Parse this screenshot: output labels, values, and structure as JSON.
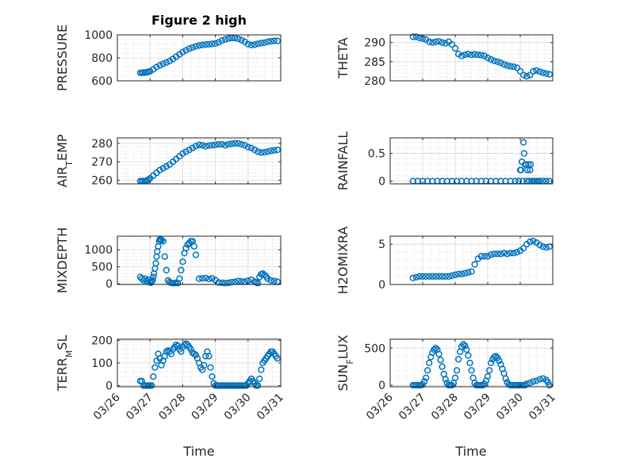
{
  "figure_title": "Figure 2 high",
  "colors": {
    "marker": "#0072BD",
    "axis": "#262626",
    "grid": "#cfcfcf"
  },
  "chart_data": [
    {
      "type": "scatter",
      "ylabel": "PRESSURE",
      "ylim": [
        600,
        1000
      ],
      "yticks": [
        600,
        800,
        1000
      ],
      "ytick_labels": [
        "600",
        "800",
        "1000"
      ],
      "x": [
        0.7,
        0.75,
        0.8,
        0.85,
        0.9,
        0.95,
        1.0,
        1.1,
        1.2,
        1.3,
        1.4,
        1.5,
        1.6,
        1.7,
        1.8,
        1.9,
        2.0,
        2.1,
        2.2,
        2.3,
        2.4,
        2.5,
        2.6,
        2.7,
        2.8,
        2.9,
        3.0,
        3.1,
        3.2,
        3.3,
        3.4,
        3.5,
        3.6,
        3.7,
        3.8,
        3.9,
        4.0,
        4.1,
        4.2,
        4.3,
        4.4,
        4.5,
        4.6,
        4.7,
        4.8,
        4.9
      ],
      "y": [
        670,
        670,
        672,
        672,
        675,
        678,
        683,
        700,
        720,
        735,
        748,
        760,
        772,
        790,
        810,
        830,
        850,
        865,
        880,
        890,
        900,
        908,
        913,
        916,
        918,
        922,
        925,
        935,
        950,
        960,
        968,
        972,
        972,
        965,
        955,
        940,
        920,
        912,
        915,
        922,
        928,
        932,
        940,
        945,
        948,
        948
      ]
    },
    {
      "type": "scatter",
      "ylabel": "THETA",
      "ylim": [
        280,
        292
      ],
      "yticks": [
        280,
        285,
        290
      ],
      "ytick_labels": [
        "280",
        "285",
        "290"
      ],
      "x": [
        0.7,
        0.8,
        0.9,
        1.0,
        1.1,
        1.2,
        1.3,
        1.4,
        1.5,
        1.6,
        1.7,
        1.8,
        1.9,
        2.0,
        2.1,
        2.2,
        2.3,
        2.4,
        2.5,
        2.6,
        2.7,
        2.8,
        2.9,
        3.0,
        3.1,
        3.2,
        3.3,
        3.4,
        3.5,
        3.6,
        3.7,
        3.8,
        3.9,
        4.0,
        4.1,
        4.2,
        4.3,
        4.4,
        4.5,
        4.6,
        4.7,
        4.8,
        4.9
      ],
      "y": [
        291.5,
        291.5,
        291.2,
        291.0,
        290.8,
        290.2,
        290.0,
        290.2,
        290.3,
        290.0,
        289.8,
        290.2,
        289.5,
        288.5,
        287.0,
        286.5,
        286.8,
        287.0,
        286.8,
        286.9,
        286.8,
        286.7,
        286.5,
        286.0,
        285.6,
        285.2,
        285.0,
        284.7,
        284.3,
        284.0,
        283.8,
        283.7,
        283.4,
        282.5,
        281.5,
        281.2,
        281.5,
        282.5,
        282.7,
        282.4,
        282.1,
        281.9,
        281.7
      ]
    },
    {
      "type": "scatter",
      "ylabel": "AIR_TEMP",
      "ylim": [
        258,
        283
      ],
      "yticks": [
        260,
        270,
        280
      ],
      "ytick_labels": [
        "260",
        "270",
        "280"
      ],
      "x": [
        0.7,
        0.75,
        0.8,
        0.85,
        0.9,
        0.95,
        1.0,
        1.1,
        1.2,
        1.3,
        1.4,
        1.5,
        1.6,
        1.7,
        1.8,
        1.9,
        2.0,
        2.1,
        2.2,
        2.3,
        2.4,
        2.5,
        2.6,
        2.7,
        2.8,
        2.9,
        3.0,
        3.1,
        3.2,
        3.3,
        3.4,
        3.5,
        3.6,
        3.7,
        3.8,
        3.9,
        4.0,
        4.1,
        4.2,
        4.3,
        4.4,
        4.5,
        4.6,
        4.7,
        4.8,
        4.9
      ],
      "y": [
        259.5,
        259.5,
        259.5,
        259.5,
        259.8,
        260.2,
        261.0,
        262.5,
        264.0,
        265.5,
        266.5,
        267.5,
        268.5,
        270.0,
        271.5,
        273.0,
        274.5,
        275.5,
        276.5,
        277.5,
        278.5,
        279.2,
        279.0,
        278.5,
        278.8,
        279.0,
        279.2,
        279.5,
        279.5,
        279.0,
        279.5,
        279.8,
        280.0,
        280.0,
        279.5,
        279.0,
        278.0,
        277.5,
        276.5,
        275.5,
        275.0,
        275.2,
        275.5,
        276.0,
        276.2,
        276.5
      ]
    },
    {
      "type": "scatter",
      "ylabel": "RAINFALL",
      "ylim": [
        -0.05,
        0.78
      ],
      "yticks": [
        0,
        0.5
      ],
      "ytick_labels": [
        "0",
        "0.5"
      ],
      "x": [
        0.7,
        0.85,
        1.0,
        1.15,
        1.3,
        1.45,
        1.6,
        1.75,
        1.9,
        2.05,
        2.2,
        2.35,
        2.5,
        2.65,
        2.8,
        2.95,
        3.1,
        3.25,
        3.4,
        3.55,
        3.7,
        3.85,
        3.95,
        4.0,
        4.02,
        4.05,
        4.08,
        4.1,
        4.12,
        4.15,
        4.18,
        4.2,
        4.22,
        4.25,
        4.28,
        4.3,
        4.32,
        4.35,
        4.4,
        4.45,
        4.5,
        4.55,
        4.6,
        4.7,
        4.8,
        4.9
      ],
      "y": [
        0,
        0,
        0,
        0,
        0,
        0,
        0,
        0,
        0,
        0,
        0,
        0,
        0,
        0,
        0,
        0,
        0,
        0,
        0,
        0,
        0,
        0,
        0,
        0.2,
        0.2,
        0.35,
        0,
        0.7,
        0.5,
        0.3,
        0.3,
        0,
        0.2,
        0.3,
        0,
        0.2,
        0.3,
        0,
        0,
        0,
        0,
        0,
        0,
        0,
        0,
        0
      ]
    },
    {
      "type": "scatter",
      "ylabel": "MIXDEPTH",
      "ylim": [
        -20,
        1400
      ],
      "yticks": [
        0,
        500,
        1000
      ],
      "ytick_labels": [
        "0",
        "500",
        "1000"
      ],
      "x": [
        0.7,
        0.75,
        0.8,
        0.85,
        0.9,
        0.95,
        1.0,
        1.02,
        1.05,
        1.08,
        1.1,
        1.12,
        1.15,
        1.18,
        1.2,
        1.22,
        1.25,
        1.28,
        1.3,
        1.33,
        1.35,
        1.4,
        1.45,
        1.5,
        1.55,
        1.6,
        1.65,
        1.7,
        1.75,
        1.8,
        1.85,
        1.9,
        1.95,
        2.0,
        2.05,
        2.1,
        2.15,
        2.2,
        2.25,
        2.3,
        2.35,
        2.4,
        2.5,
        2.6,
        2.7,
        2.8,
        2.9,
        3.0,
        3.1,
        3.2,
        3.3,
        3.4,
        3.5,
        3.6,
        3.7,
        3.8,
        3.9,
        4.0,
        4.1,
        4.2,
        4.25,
        4.3,
        4.35,
        4.4,
        4.45,
        4.5,
        4.55,
        4.6,
        4.7,
        4.8,
        4.9
      ],
      "y": [
        200,
        150,
        100,
        150,
        80,
        120,
        50,
        30,
        80,
        100,
        200,
        300,
        450,
        600,
        800,
        950,
        1100,
        1250,
        1300,
        1300,
        1280,
        1250,
        800,
        400,
        100,
        50,
        30,
        20,
        20,
        30,
        20,
        150,
        400,
        650,
        900,
        1050,
        1150,
        1200,
        1250,
        1250,
        1100,
        850,
        150,
        160,
        170,
        140,
        160,
        110,
        40,
        30,
        20,
        30,
        50,
        60,
        80,
        70,
        60,
        90,
        120,
        60,
        40,
        20,
        200,
        280,
        300,
        260,
        220,
        150,
        100,
        80,
        60
      ]
    },
    {
      "type": "scatter",
      "ylabel": "H2OMIXRA",
      "ylim": [
        0,
        6
      ],
      "yticks": [
        0,
        5
      ],
      "ytick_labels": [
        "0",
        "5"
      ],
      "x": [
        0.7,
        0.8,
        0.9,
        1.0,
        1.1,
        1.2,
        1.3,
        1.4,
        1.5,
        1.6,
        1.7,
        1.8,
        1.9,
        2.0,
        2.1,
        2.2,
        2.3,
        2.4,
        2.5,
        2.6,
        2.7,
        2.8,
        2.9,
        3.0,
        3.1,
        3.2,
        3.3,
        3.4,
        3.5,
        3.6,
        3.7,
        3.8,
        3.9,
        4.0,
        4.1,
        4.2,
        4.3,
        4.4,
        4.5,
        4.6,
        4.7,
        4.8,
        4.9
      ],
      "y": [
        0.8,
        0.9,
        1.0,
        1.0,
        1.0,
        1.0,
        1.0,
        1.0,
        1.0,
        1.0,
        1.0,
        1.0,
        1.1,
        1.2,
        1.3,
        1.3,
        1.4,
        1.5,
        1.6,
        2.5,
        3.2,
        3.5,
        3.5,
        3.5,
        3.7,
        3.8,
        3.8,
        3.8,
        3.9,
        3.8,
        3.9,
        3.9,
        4.0,
        4.2,
        4.5,
        5.0,
        5.3,
        5.4,
        5.2,
        4.9,
        4.7,
        4.6,
        4.7
      ]
    },
    {
      "type": "scatter",
      "ylabel": "TERR_MSL",
      "ylim": [
        -5,
        205
      ],
      "yticks": [
        0,
        100,
        200
      ],
      "ytick_labels": [
        "0",
        "100",
        "200"
      ],
      "x": [
        0.7,
        0.75,
        0.8,
        0.85,
        0.9,
        0.95,
        1.0,
        1.05,
        1.1,
        1.15,
        1.2,
        1.25,
        1.3,
        1.35,
        1.4,
        1.45,
        1.5,
        1.55,
        1.6,
        1.65,
        1.7,
        1.75,
        1.8,
        1.85,
        1.9,
        1.95,
        2.0,
        2.05,
        2.1,
        2.15,
        2.2,
        2.25,
        2.3,
        2.35,
        2.4,
        2.45,
        2.5,
        2.55,
        2.6,
        2.65,
        2.7,
        2.75,
        2.8,
        2.85,
        2.9,
        2.95,
        3.0,
        3.05,
        3.1,
        3.15,
        3.2,
        3.25,
        3.3,
        3.35,
        3.4,
        3.45,
        3.5,
        3.55,
        3.6,
        3.65,
        3.7,
        3.75,
        3.8,
        3.85,
        3.9,
        3.95,
        4.0,
        4.05,
        4.1,
        4.15,
        4.2,
        4.25,
        4.3,
        4.35,
        4.4,
        4.45,
        4.5,
        4.55,
        4.6,
        4.65,
        4.7,
        4.75,
        4.8,
        4.85,
        4.9
      ],
      "y": [
        20,
        20,
        0,
        0,
        0,
        0,
        0,
        0,
        40,
        80,
        110,
        140,
        120,
        90,
        110,
        130,
        150,
        155,
        150,
        140,
        160,
        170,
        180,
        175,
        160,
        150,
        170,
        180,
        185,
        180,
        170,
        160,
        145,
        140,
        135,
        120,
        100,
        80,
        70,
        90,
        130,
        150,
        130,
        80,
        40,
        10,
        0,
        0,
        0,
        0,
        0,
        0,
        0,
        0,
        0,
        0,
        0,
        0,
        0,
        0,
        0,
        0,
        0,
        0,
        0,
        0,
        10,
        20,
        30,
        20,
        10,
        0,
        0,
        30,
        70,
        100,
        110,
        120,
        130,
        140,
        150,
        150,
        140,
        130,
        120
      ]
    },
    {
      "type": "scatter",
      "ylabel": "SUN_FLUX",
      "ylim": [
        -20,
        620
      ],
      "yticks": [
        0,
        500
      ],
      "ytick_labels": [
        "0",
        "500"
      ],
      "x": [
        0.7,
        0.75,
        0.8,
        0.85,
        0.9,
        0.95,
        1.0,
        1.05,
        1.1,
        1.15,
        1.2,
        1.25,
        1.3,
        1.35,
        1.4,
        1.45,
        1.5,
        1.55,
        1.6,
        1.65,
        1.7,
        1.75,
        1.8,
        1.85,
        1.9,
        1.95,
        2.0,
        2.05,
        2.1,
        2.15,
        2.2,
        2.25,
        2.3,
        2.35,
        2.4,
        2.45,
        2.5,
        2.55,
        2.6,
        2.65,
        2.7,
        2.75,
        2.8,
        2.85,
        2.9,
        2.95,
        3.0,
        3.05,
        3.1,
        3.15,
        3.2,
        3.25,
        3.3,
        3.35,
        3.4,
        3.45,
        3.5,
        3.55,
        3.6,
        3.65,
        3.7,
        3.75,
        3.8,
        3.85,
        3.9,
        3.95,
        4.0,
        4.05,
        4.1,
        4.15,
        4.2,
        4.3,
        4.4,
        4.5,
        4.6,
        4.7,
        4.8,
        4.85,
        4.9
      ],
      "y": [
        0,
        0,
        0,
        0,
        0,
        0,
        10,
        50,
        100,
        200,
        300,
        380,
        440,
        480,
        500,
        480,
        420,
        340,
        250,
        150,
        80,
        30,
        0,
        0,
        0,
        30,
        100,
        200,
        350,
        450,
        520,
        550,
        530,
        480,
        400,
        300,
        200,
        100,
        30,
        0,
        0,
        0,
        0,
        0,
        20,
        60,
        120,
        200,
        300,
        350,
        380,
        390,
        370,
        330,
        280,
        220,
        160,
        90,
        40,
        10,
        0,
        0,
        0,
        0,
        0,
        0,
        0,
        0,
        0,
        0,
        20,
        30,
        50,
        60,
        80,
        90,
        70,
        40,
        0
      ]
    }
  ],
  "x_axis": {
    "label": "Time",
    "range": [
      0,
      5
    ],
    "tick_values": [
      0,
      1,
      2,
      3,
      4,
      5
    ],
    "tick_labels": [
      "03/26",
      "03/27",
      "03/28",
      "03/29",
      "03/30",
      "03/31"
    ]
  }
}
